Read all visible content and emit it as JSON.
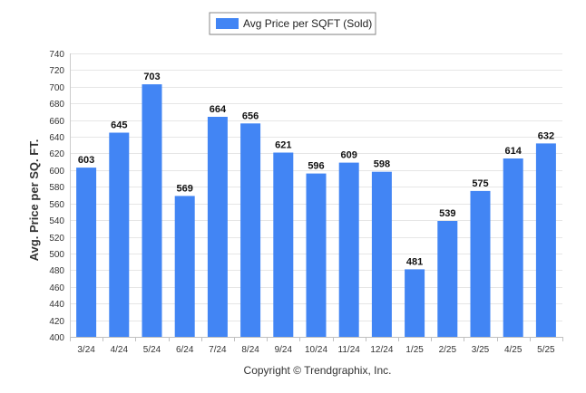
{
  "chart_data": {
    "type": "bar",
    "categories": [
      "3/24",
      "4/24",
      "5/24",
      "6/24",
      "7/24",
      "8/24",
      "9/24",
      "10/24",
      "11/24",
      "12/24",
      "1/25",
      "2/25",
      "3/25",
      "4/25",
      "5/25"
    ],
    "series": [
      {
        "name": "Avg Price per SQFT (Sold)",
        "values": [
          603,
          645,
          703,
          569,
          664,
          656,
          621,
          596,
          609,
          598,
          481,
          539,
          575,
          614,
          632
        ],
        "color": "#4285f4"
      }
    ],
    "ylabel": "Avg. Price per SQ. FT.",
    "xlabel": "",
    "ylim": [
      400,
      740
    ],
    "y_ticks": [
      400,
      420,
      440,
      460,
      480,
      500,
      520,
      540,
      560,
      580,
      600,
      620,
      640,
      660,
      680,
      700,
      720,
      740
    ],
    "data_labels": true,
    "grid": true,
    "legend_position": "top-center"
  },
  "footer": {
    "copyright": "Copyright © Trendgraphix, Inc."
  }
}
